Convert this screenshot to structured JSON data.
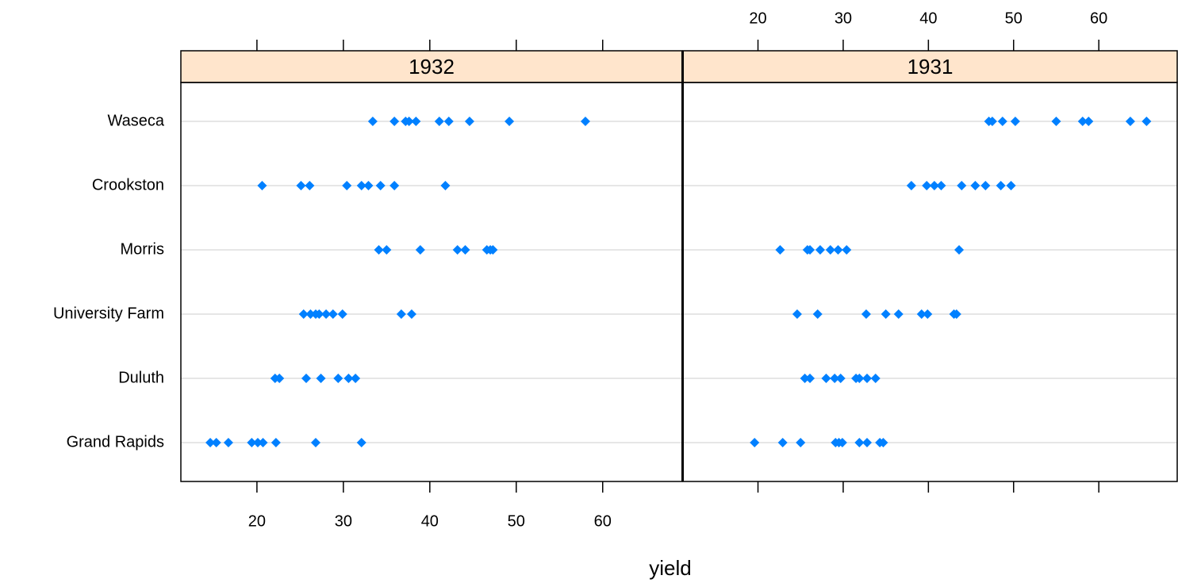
{
  "chart_data": {
    "type": "dotplot",
    "xlabel": "yield",
    "categories": [
      "Waseca",
      "Crookston",
      "Morris",
      "University Farm",
      "Duluth",
      "Grand Rapids"
    ],
    "xlim": [
      11.2,
      69.2
    ],
    "xticks": [
      20,
      30,
      40,
      50,
      60
    ],
    "grid": true,
    "color": "#0080ff",
    "panels": [
      {
        "title": "1932",
        "values": [
          [
            33.4,
            35.9,
            37.2,
            37.6,
            38.4,
            41.1,
            42.2,
            44.6,
            49.2,
            58.0
          ],
          [
            20.6,
            25.1,
            26.1,
            30.4,
            32.1,
            32.9,
            34.3,
            35.9,
            41.8
          ],
          [
            34.1,
            35.0,
            38.9,
            43.2,
            44.1,
            46.6,
            47.0,
            47.3
          ],
          [
            25.4,
            26.2,
            26.8,
            27.2,
            28.0,
            28.8,
            29.9,
            36.7,
            37.9
          ],
          [
            22.1,
            22.6,
            25.7,
            27.4,
            29.4,
            30.6,
            31.4
          ],
          [
            14.6,
            15.3,
            16.7,
            19.4,
            20.1,
            20.7,
            22.2,
            26.8,
            32.1
          ]
        ]
      },
      {
        "title": "1931",
        "values": [
          [
            47.1,
            47.5,
            48.7,
            50.2,
            55.0,
            58.1,
            58.8,
            63.7,
            65.6
          ],
          [
            38.0,
            39.8,
            40.7,
            41.5,
            43.9,
            45.5,
            46.7,
            48.5,
            49.7
          ],
          [
            22.6,
            25.8,
            26.1,
            27.3,
            28.5,
            29.4,
            30.4,
            43.6
          ],
          [
            24.6,
            27.0,
            32.7,
            35.0,
            36.5,
            39.2,
            39.9,
            43.0,
            43.3
          ],
          [
            25.5,
            26.1,
            28.0,
            29.0,
            29.7,
            31.5,
            31.9,
            32.8,
            33.8
          ],
          [
            19.6,
            22.9,
            25.0,
            29.1,
            29.5,
            29.9,
            31.9,
            32.8,
            34.3,
            34.7
          ]
        ]
      }
    ]
  }
}
